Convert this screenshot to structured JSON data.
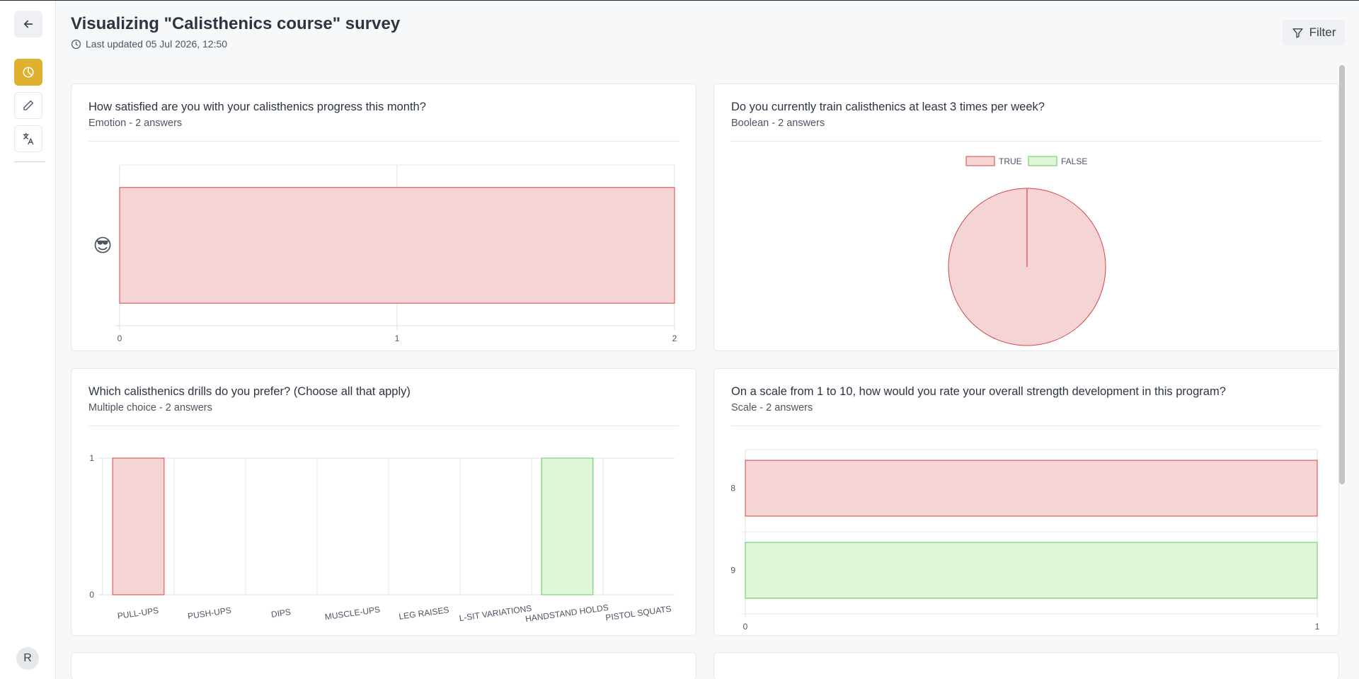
{
  "header": {
    "title": "Visualizing \"Calisthenics course\" survey",
    "last_updated": "Last updated 05 Jul 2026, 12:50",
    "filter_label": "Filter"
  },
  "sidebar": {
    "avatar_initial": "R",
    "items": [
      {
        "icon": "arrow-left-icon"
      },
      {
        "icon": "pie-chart-icon"
      },
      {
        "icon": "pencil-icon"
      },
      {
        "icon": "translate-icon"
      }
    ]
  },
  "cards": [
    {
      "title": "How satisfied are you with your calisthenics progress this month?",
      "subtitle": "Emotion - 2 answers"
    },
    {
      "title": "Do you currently train calisthenics at least 3 times per week?",
      "subtitle": "Boolean - 2 answers"
    },
    {
      "title": "Which calisthenics drills do you prefer? (Choose all that apply)",
      "subtitle": "Multiple choice - 2 answers"
    },
    {
      "title": "On a scale from 1 to 10, how would you rate your overall strength development in this program?",
      "subtitle": "Scale - 2 answers"
    }
  ],
  "colors": {
    "accent": "#e0b12f",
    "red_fill": "#f4d4d4",
    "red_stroke": "#d64545",
    "green_fill": "#dff6d9",
    "green_stroke": "#5cc95c"
  },
  "chart_data": [
    {
      "type": "bar",
      "orientation": "horizontal",
      "categories": [
        "😎"
      ],
      "values": [
        2
      ],
      "x_ticks": [
        "0",
        "1",
        "2"
      ],
      "xlim": [
        0,
        2
      ],
      "grid": true
    },
    {
      "type": "pie",
      "labels": [
        "TRUE",
        "FALSE"
      ],
      "values": [
        2,
        0
      ],
      "legend": "top"
    },
    {
      "type": "bar",
      "categories": [
        "PULL-UPS",
        "PUSH-UPS",
        "DIPS",
        "MUSCLE-UPS",
        "LEG RAISES",
        "L-SIT VARIATIONS",
        "HANDSTAND HOLDS",
        "PISTOL SQUATS"
      ],
      "values": [
        1,
        0,
        0,
        0,
        0,
        0,
        1,
        0
      ],
      "y_ticks": [
        "0",
        "1"
      ],
      "ylim": [
        0,
        1
      ],
      "grid": true
    },
    {
      "type": "bar",
      "orientation": "horizontal",
      "categories": [
        "8",
        "9"
      ],
      "values": [
        1,
        1
      ],
      "x_ticks": [
        "0",
        "1"
      ],
      "xlim": [
        0,
        1
      ],
      "grid": true
    }
  ]
}
